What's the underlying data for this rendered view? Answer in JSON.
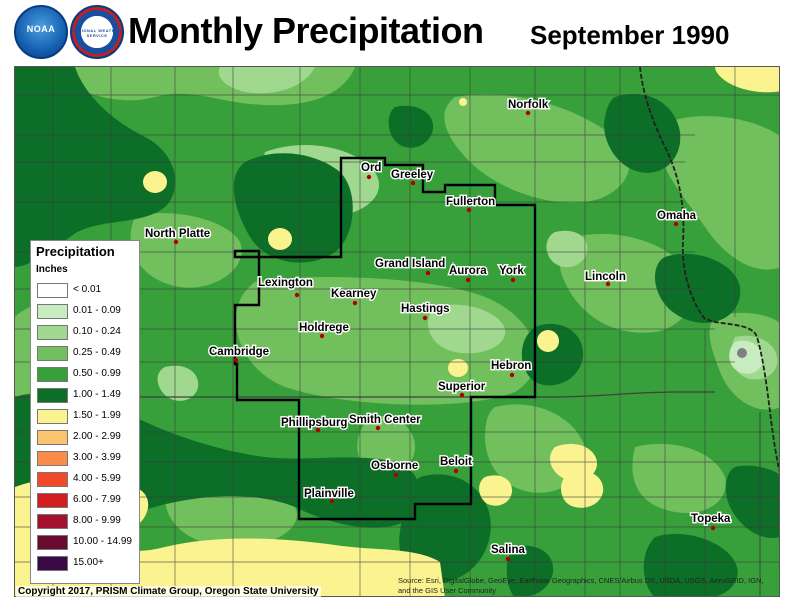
{
  "header": {
    "title": "Monthly Precipitation",
    "subtitle": "September 1990",
    "logos": [
      {
        "name": "noaa-logo",
        "text": "NOAA"
      },
      {
        "name": "nws-logo",
        "text": "NATIONAL WEATHER SERVICE"
      }
    ]
  },
  "map": {
    "cities": [
      {
        "name": "Norfolk"
      },
      {
        "name": "Ord"
      },
      {
        "name": "Greeley"
      },
      {
        "name": "Fullerton"
      },
      {
        "name": "North Platte"
      },
      {
        "name": "Omaha"
      },
      {
        "name": "Lexington"
      },
      {
        "name": "Grand Island"
      },
      {
        "name": "Aurora"
      },
      {
        "name": "York"
      },
      {
        "name": "Lincoln"
      },
      {
        "name": "Kearney"
      },
      {
        "name": "Hastings"
      },
      {
        "name": "Holdrege"
      },
      {
        "name": "Cambridge"
      },
      {
        "name": "Hebron"
      },
      {
        "name": "Superior"
      },
      {
        "name": "Phillipsburg"
      },
      {
        "name": "Smith Center"
      },
      {
        "name": "Osborne"
      },
      {
        "name": "Beloit"
      },
      {
        "name": "Plainville"
      },
      {
        "name": "Topeka"
      },
      {
        "name": "Salina"
      }
    ]
  },
  "legend": {
    "title": "Precipitation",
    "units": "Inches",
    "items": [
      {
        "label": "< 0.01",
        "color": "#ffffff"
      },
      {
        "label": "0.01 - 0.09",
        "color": "#c8ebc0"
      },
      {
        "label": "0.10 - 0.24",
        "color": "#9fd88e"
      },
      {
        "label": "0.25 - 0.49",
        "color": "#72bf5e"
      },
      {
        "label": "0.50 - 0.99",
        "color": "#37a03a"
      },
      {
        "label": "1.00 - 1.49",
        "color": "#0d6e28"
      },
      {
        "label": "1.50 - 1.99",
        "color": "#fbf38f"
      },
      {
        "label": "2.00 - 2.99",
        "color": "#fcc36e"
      },
      {
        "label": "3.00 - 3.99",
        "color": "#fb8c4a"
      },
      {
        "label": "4.00 - 5.99",
        "color": "#f04a2a"
      },
      {
        "label": "6.00 - 7.99",
        "color": "#d21e1e"
      },
      {
        "label": "8.00 - 9.99",
        "color": "#a5102e"
      },
      {
        "label": "10.00 - 14.99",
        "color": "#6a0a2e"
      },
      {
        "label": "15.00+",
        "color": "#3a0a45"
      }
    ]
  },
  "footer": {
    "copyright": "Copyright 2017, PRISM Climate Group, Oregon State University",
    "source": "Source: Esri, DigitalGlobe, GeoEye, Earthstar Geographics, CNES/Airbus DS, USDA, USGS, AeroGRID, IGN, and the GIS User Community"
  }
}
